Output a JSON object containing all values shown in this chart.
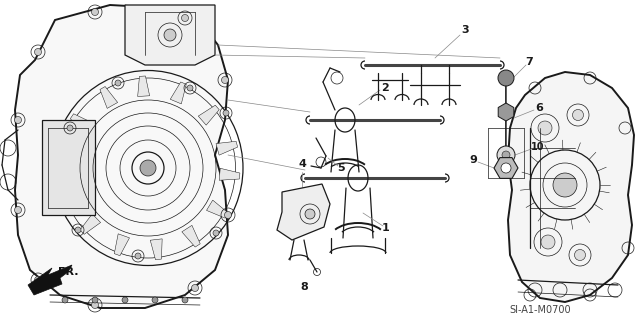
{
  "bg_color": "#ffffff",
  "line_color": "#1a1a1a",
  "gray_color": "#888888",
  "light_gray": "#cccccc",
  "diagram_ref": "SI-A1-M0700",
  "figsize": [
    6.4,
    3.19
  ],
  "dpi": 100
}
